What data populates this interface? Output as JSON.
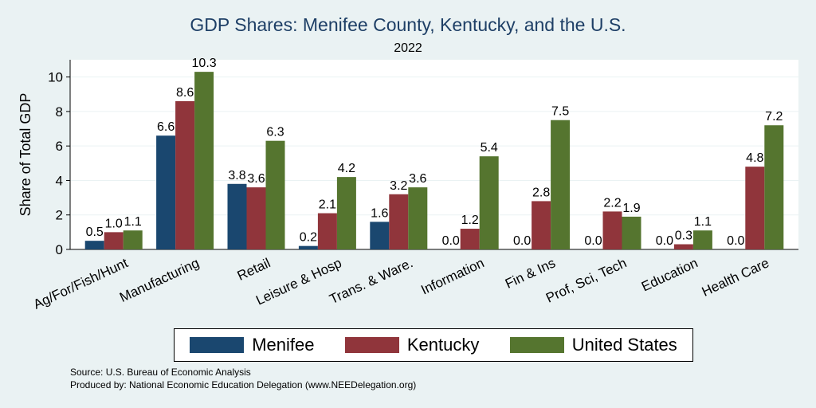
{
  "chart_data": {
    "type": "bar",
    "title": "GDP Shares: Menifee County, Kentucky, and the U.S.",
    "subtitle": "2022",
    "ylabel": "Share of Total GDP",
    "xlabel": "",
    "ylim": [
      0,
      11
    ],
    "yticks": [
      0,
      2,
      4,
      6,
      8,
      10
    ],
    "grid": true,
    "legend_position": "bottom",
    "categories": [
      "Ag/For/Fish/Hunt",
      "Manufacturing",
      "Retail",
      "Leisure & Hosp",
      "Trans. & Ware.",
      "Information",
      "Fin & Ins",
      "Prof, Sci, Tech",
      "Education",
      "Health Care"
    ],
    "series": [
      {
        "name": "Menifee",
        "color": "#1a476f",
        "values": [
          0.5,
          6.6,
          3.8,
          0.2,
          1.6,
          0.0,
          0.0,
          0.0,
          0.0,
          0.0
        ],
        "labels": [
          "0.5",
          "6.6",
          "3.8",
          "0.2",
          "1.6",
          "0.0",
          "0.0",
          "0.0",
          "0.0",
          "0.0"
        ]
      },
      {
        "name": "Kentucky",
        "color": "#90353b",
        "values": [
          1.0,
          8.6,
          3.6,
          2.1,
          3.2,
          1.2,
          2.8,
          2.2,
          0.3,
          4.8
        ],
        "labels": [
          "1.0",
          "8.6",
          "3.6",
          "2.1",
          "3.2",
          "1.2",
          "2.8",
          "2.2",
          "0.3",
          "4.8"
        ]
      },
      {
        "name": "United States",
        "color": "#55752f",
        "values": [
          1.1,
          10.3,
          6.3,
          4.2,
          3.6,
          5.4,
          7.5,
          1.9,
          1.1,
          7.2
        ],
        "labels": [
          "1.1",
          "10.3",
          "6.3",
          "4.2",
          "3.6",
          "5.4",
          "7.5",
          "1.9",
          "1.1",
          "7.2"
        ]
      }
    ]
  },
  "notes": {
    "source": "Source: U.S. Bureau of Economic Analysis",
    "produced": "Produced by: National Economic Education Delegation (www.NEEDelegation.org)"
  }
}
